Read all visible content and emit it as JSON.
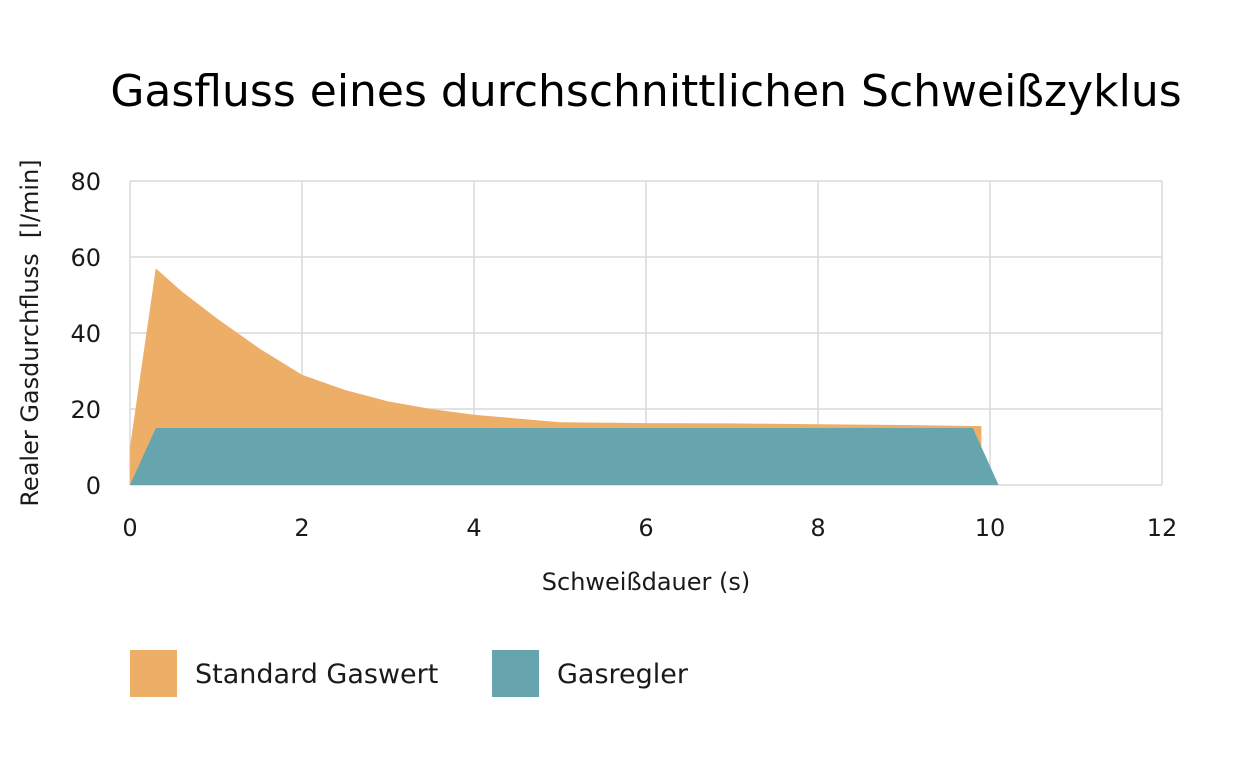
{
  "chart_data": {
    "type": "area",
    "title": "Gasfluss eines durchschnittlichen Schweißzyklus",
    "xlabel": "Schweißdauer (s)",
    "ylabel": "Realer Gasdurchfluss  [l/min]",
    "xlim": [
      0,
      12
    ],
    "ylim": [
      0,
      80
    ],
    "xticks": [
      "0",
      "2",
      "4",
      "6",
      "8",
      "10",
      "12"
    ],
    "yticks": [
      "0",
      "20",
      "40",
      "60",
      "80"
    ],
    "grid": true,
    "legend_position": "bottom-left",
    "series": [
      {
        "name": "Standard Gaswert",
        "color": "#EDAE68",
        "x": [
          0,
          0,
          0.3,
          0.6,
          1.0,
          1.5,
          2.0,
          2.5,
          3.0,
          3.5,
          4.0,
          5.0,
          6.0,
          7.0,
          8.0,
          9.0,
          9.9,
          9.9
        ],
        "y": [
          0,
          10,
          57,
          51,
          44,
          36,
          29,
          25,
          22,
          20,
          18.5,
          16.5,
          16.3,
          16.2,
          16.0,
          15.8,
          15.5,
          0
        ]
      },
      {
        "name": "Gasregler",
        "color": "#67A5AE",
        "x": [
          0,
          0.3,
          9.8,
          10.1
        ],
        "y": [
          0,
          15,
          15,
          0
        ]
      }
    ]
  }
}
